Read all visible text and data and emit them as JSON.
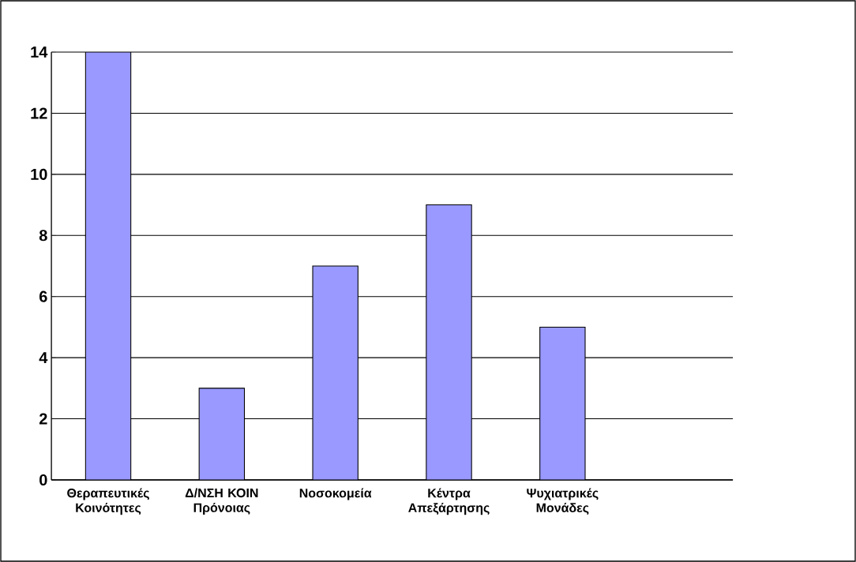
{
  "chart_data": {
    "type": "bar",
    "categories": [
      "Θεραπευτικές Κοινότητες",
      "Δ/ΝΣΗ ΚΟΙΝ Πρόνοιας",
      "Νοσοκομεία",
      "Κέντρα Απεξάρτησης",
      "Ψυχιατρικές Μονάδες",
      null
    ],
    "values": [
      14,
      3,
      7,
      9,
      5,
      null
    ],
    "color": "#9999ff",
    "ylim": [
      0,
      14
    ],
    "yticks": [
      0,
      2,
      4,
      6,
      8,
      10,
      12,
      14
    ],
    "grid": "y"
  }
}
